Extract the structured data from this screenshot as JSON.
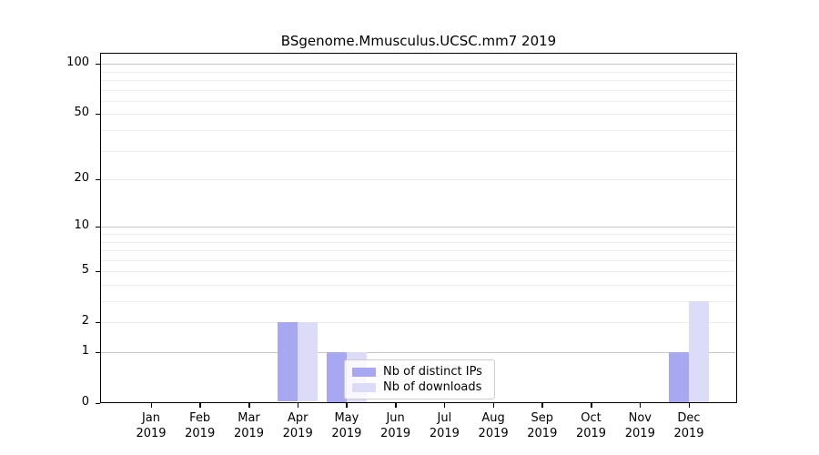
{
  "chart_data": {
    "type": "bar",
    "title": "BSgenome.Mmusculus.UCSC.mm7 2019",
    "categories": [
      "Jan",
      "Feb",
      "Mar",
      "Apr",
      "May",
      "Jun",
      "Jul",
      "Aug",
      "Sep",
      "Oct",
      "Nov",
      "Dec"
    ],
    "year_label": "2019",
    "series": [
      {
        "name": "Nb of distinct IPs",
        "color": "#a7a7f2",
        "values": [
          0,
          0,
          0,
          2,
          1,
          0,
          0,
          0,
          0,
          0,
          0,
          1
        ]
      },
      {
        "name": "Nb of downloads",
        "color": "#dcdcf8",
        "values": [
          0,
          0,
          0,
          2,
          1,
          0,
          0,
          0,
          0,
          0,
          0,
          3
        ]
      }
    ],
    "xlabel": "",
    "ylabel": "",
    "yscale": "log1p",
    "ylim": [
      0,
      100
    ],
    "yticks": [
      0,
      1,
      2,
      5,
      10,
      20,
      50,
      100
    ],
    "major_gridlines": [
      1,
      10,
      100
    ],
    "minor_gridlines": [
      2,
      3,
      4,
      5,
      6,
      7,
      8,
      9,
      20,
      30,
      40,
      50,
      60,
      70,
      80,
      90
    ],
    "grid": true,
    "legend_position": "inside-bottom-center"
  },
  "colors": {
    "major_grid": "#c8c8c8",
    "minor_grid": "#ececec",
    "spine": "#000000",
    "background": "#ffffff"
  }
}
